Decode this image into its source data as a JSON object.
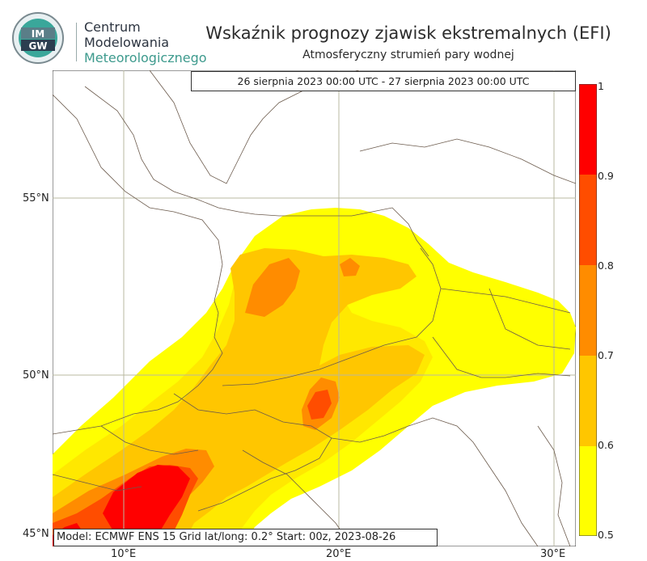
{
  "header": {
    "title": "Wskaźnik prognozy zjawisk ekstremalnych (EFI)",
    "subtitle": "Atmosferyczny strumień pary wodnej"
  },
  "logo": {
    "text_top": "IM",
    "text_bottom": "GW",
    "brand_line1": "Centrum",
    "brand_line2": "Modelowania",
    "brand_line3": "Meteorologicznego"
  },
  "map": {
    "date_range": "26 sierpnia 2023 00:00 UTC - 27 sierpnia 2023 00:00 UTC",
    "info": "Model: ECMWF  ENS 15  Grid lat/long: 0.2°  Start: 00z, 2023-08-26",
    "lat_labels": [
      "55°N",
      "50°N",
      "45°N"
    ],
    "lon_labels": [
      "10°E",
      "20°E",
      "30°E"
    ]
  },
  "colorbar": {
    "ticks": [
      "1",
      "0.9",
      "0.8",
      "0.7",
      "0.6",
      "0.5"
    ],
    "colors": [
      "#ff0000",
      "#ff4d00",
      "#ff8c00",
      "#ffc600",
      "#ffe800",
      "#ffff00"
    ]
  }
}
